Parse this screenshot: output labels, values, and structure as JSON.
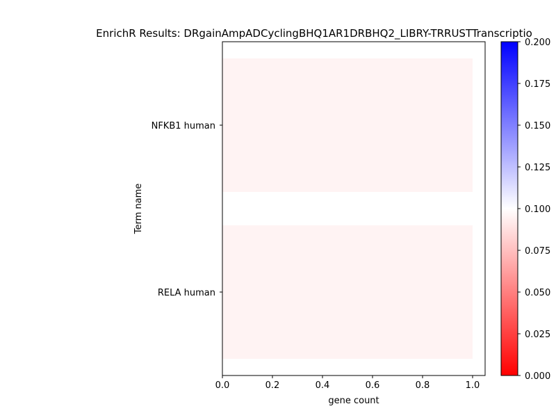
{
  "chart_data": {
    "type": "bar",
    "orientation": "horizontal",
    "title": "EnrichR Results: DRgainAmpADCyclingBHQ1AR1DRBHQ2_LIBRY-TRRUSTTranscriptio",
    "xlabel": "gene count",
    "ylabel": "Term name",
    "categories": [
      "NFKB1 human",
      "RELA human"
    ],
    "values": [
      1,
      1
    ],
    "color_values": [
      0.095,
      0.095
    ],
    "xlim": [
      0,
      1.05
    ],
    "xticks": [
      "0.0",
      "0.2",
      "0.4",
      "0.6",
      "0.8",
      "1.0"
    ],
    "colorbar": {
      "colormap": "bwr_r",
      "range": [
        0,
        0.2
      ],
      "ticks": [
        "0.000",
        "0.025",
        "0.050",
        "0.075",
        "0.100",
        "0.125",
        "0.150",
        "0.175",
        "0.200"
      ]
    },
    "bar_color": "#fff3f3",
    "grid": false,
    "legend": "none"
  }
}
